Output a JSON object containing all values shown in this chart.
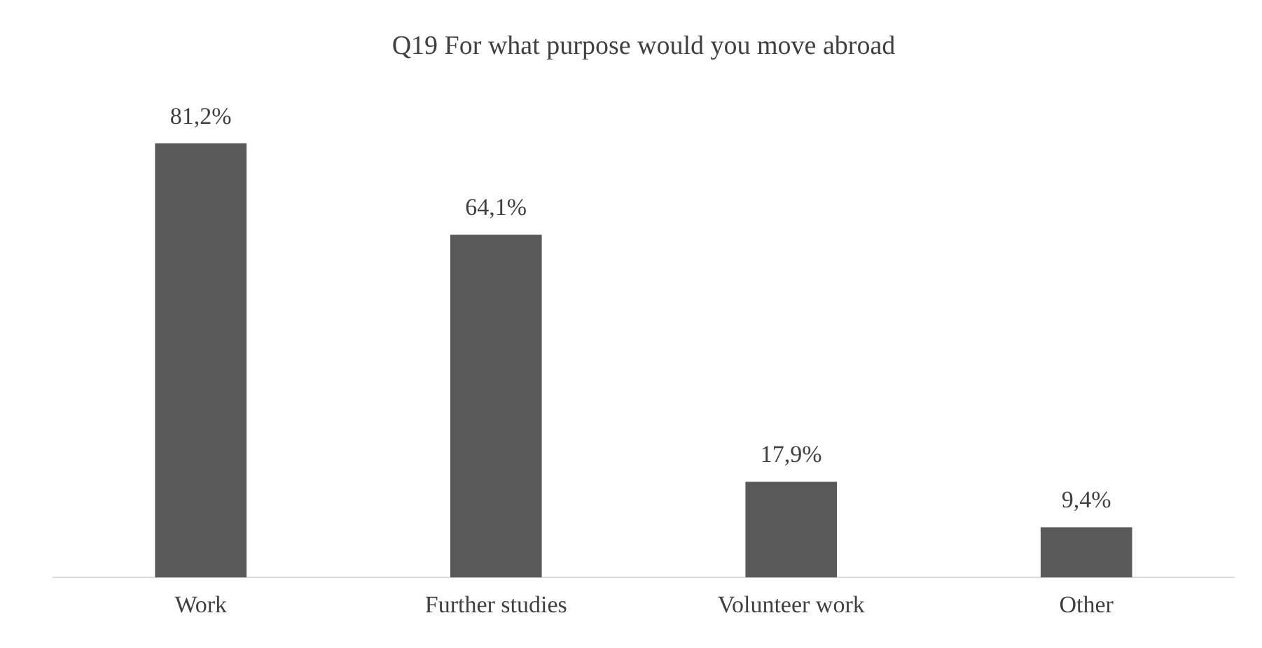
{
  "chart_data": {
    "type": "bar",
    "title": "Q19 For what purpose would you move abroad",
    "categories": [
      "Work",
      "Further studies",
      "Volunteer work",
      "Other"
    ],
    "values": [
      81.2,
      64.1,
      17.9,
      9.4
    ],
    "value_labels": [
      "81,2%",
      "64,1%",
      "17,9%",
      "9,4%"
    ],
    "color": "#595959",
    "grid": false,
    "legend": false
  }
}
